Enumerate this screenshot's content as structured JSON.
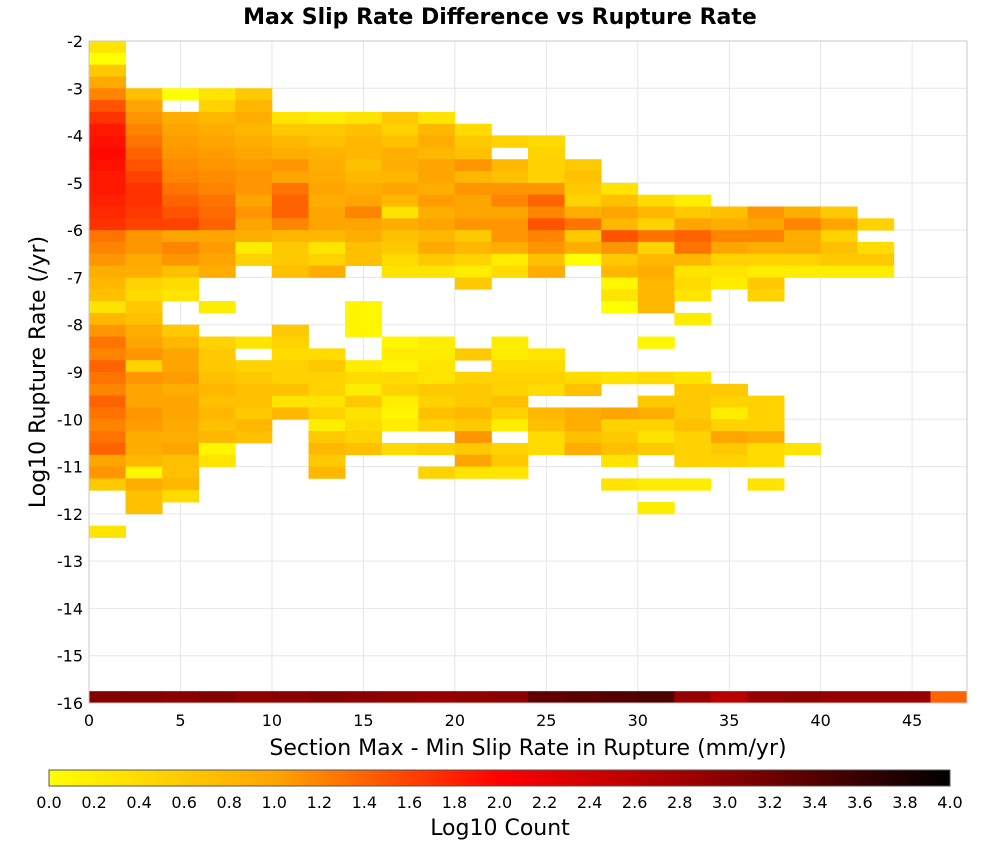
{
  "chart_data": {
    "type": "heatmap",
    "title": "Max Slip Rate Difference vs Rupture Rate",
    "xlabel": "Section Max - Min Slip Rate in Rupture (mm/yr)",
    "ylabel": "Log10 Rupture Rate (/yr)",
    "xlim": [
      0,
      48
    ],
    "ylim": [
      -16,
      -2
    ],
    "x_bin_width": 2,
    "y_bin_width": 0.25,
    "xticks": [
      "0",
      "5",
      "10",
      "15",
      "20",
      "25",
      "30",
      "35",
      "40",
      "45"
    ],
    "yticks": [
      "-2",
      "-3",
      "-4",
      "-5",
      "-6",
      "-7",
      "-8",
      "-9",
      "-10",
      "-11",
      "-12",
      "-13",
      "-14",
      "-15",
      "-16"
    ],
    "grid": true,
    "colorbar": {
      "label": "Log10 Count",
      "range": [
        0,
        4
      ],
      "ticks": [
        "0.0",
        "0.2",
        "0.4",
        "0.6",
        "0.8",
        "1.0",
        "1.2",
        "1.4",
        "1.6",
        "1.8",
        "2.0",
        "2.2",
        "2.4",
        "2.6",
        "2.8",
        "3.0",
        "3.2",
        "3.4",
        "3.6",
        "3.8",
        "4.0"
      ],
      "colors": [
        "#ffff00",
        "#ffa500",
        "#ff0000",
        "#8b0000",
        "#000000"
      ]
    },
    "rows": [
      {
        "y": -2.125,
        "x0": 0,
        "values": [
          0.3
        ]
      },
      {
        "y": -2.375,
        "x0": 0,
        "values": [
          0.0
        ]
      },
      {
        "y": -2.625,
        "x0": 0,
        "values": [
          0.6
        ]
      },
      {
        "y": -2.875,
        "x0": 0,
        "values": [
          0.95
        ]
      },
      {
        "y": -3.125,
        "x0": 0,
        "values": [
          1.2,
          0.7,
          0.0,
          0.3,
          0.6
        ]
      },
      {
        "y": -3.375,
        "x0": 0,
        "values": [
          1.5,
          1.0,
          null,
          0.5,
          0.8
        ]
      },
      {
        "y": -3.625,
        "x0": 0,
        "values": [
          1.7,
          1.1,
          0.9,
          0.8,
          0.9,
          0.3,
          0.2,
          0.3,
          0.6,
          0.3
        ]
      },
      {
        "y": -3.875,
        "x0": 0,
        "values": [
          1.85,
          1.2,
          1.0,
          0.9,
          0.8,
          0.6,
          0.6,
          0.7,
          0.5,
          0.8,
          0.4,
          null,
          null,
          null,
          null
        ]
      },
      {
        "y": -4.125,
        "x0": 0,
        "values": [
          1.9,
          1.3,
          1.05,
          1.0,
          0.9,
          0.8,
          0.7,
          0.8,
          0.7,
          0.9,
          0.6,
          0.5,
          0.4,
          null,
          null
        ]
      },
      {
        "y": -4.375,
        "x0": 0,
        "values": [
          1.95,
          1.4,
          1.1,
          1.05,
          1.0,
          0.9,
          0.85,
          0.8,
          0.9,
          0.8,
          0.7,
          null,
          0.5,
          null,
          null
        ]
      },
      {
        "y": -4.625,
        "x0": 0,
        "values": [
          1.9,
          1.5,
          1.15,
          1.1,
          1.05,
          1.1,
          0.9,
          0.7,
          0.9,
          1.0,
          1.1,
          0.8,
          0.5,
          0.6,
          null
        ]
      },
      {
        "y": -4.875,
        "x0": 0,
        "values": [
          1.85,
          1.6,
          1.2,
          1.15,
          1.1,
          1.0,
          0.95,
          0.8,
          0.8,
          1.0,
          0.8,
          0.7,
          0.5,
          0.7,
          null
        ]
      },
      {
        "y": -5.125,
        "x0": 0,
        "values": [
          1.85,
          1.7,
          1.3,
          1.2,
          1.1,
          1.3,
          1.0,
          0.9,
          1.0,
          0.9,
          1.1,
          1.1,
          1.1,
          0.6,
          0.3
        ]
      },
      {
        "y": -5.375,
        "x0": 0,
        "values": [
          1.8,
          1.7,
          1.4,
          1.3,
          1.0,
          1.4,
          0.9,
          1.0,
          0.8,
          1.05,
          1.0,
          1.2,
          1.4,
          0.5,
          0.7,
          0.4,
          0.2
        ]
      },
      {
        "y": -5.625,
        "x0": 0,
        "values": [
          1.75,
          1.65,
          1.5,
          1.35,
          1.1,
          1.4,
          1.0,
          1.2,
          0.3,
          0.9,
          1.0,
          1.0,
          1.2,
          0.9,
          1.0,
          0.8,
          0.6,
          0.7,
          1.1,
          0.9,
          0.6
        ]
      },
      {
        "y": -5.875,
        "x0": 0,
        "values": [
          1.7,
          1.6,
          1.6,
          1.4,
          1.0,
          1.2,
          1.0,
          1.0,
          0.9,
          1.0,
          1.1,
          1.1,
          1.5,
          1.3,
          0.8,
          0.5,
          1.0,
          0.9,
          1.0,
          1.2,
          1.0,
          0.5
        ]
      },
      {
        "y": -6.125,
        "x0": 0,
        "values": [
          1.3,
          1.1,
          1.0,
          1.0,
          0.9,
          0.8,
          0.8,
          0.9,
          0.7,
          0.8,
          0.6,
          1.1,
          1.2,
          0.6,
          1.5,
          1.3,
          1.4,
          1.2,
          1.2,
          0.9,
          0.5,
          null
        ]
      },
      {
        "y": -6.375,
        "x0": 0,
        "values": [
          1.2,
          1.1,
          1.2,
          1.05,
          0.2,
          0.6,
          0.3,
          0.7,
          0.6,
          0.95,
          0.8,
          0.9,
          1.1,
          0.9,
          1.1,
          0.5,
          1.3,
          1.0,
          0.9,
          0.9,
          0.7,
          0.4
        ]
      },
      {
        "y": -6.625,
        "x0": 0,
        "values": [
          1.1,
          0.95,
          1.1,
          1.0,
          0.5,
          0.6,
          0.5,
          0.7,
          0.4,
          0.6,
          0.5,
          0.2,
          0.7,
          0.0,
          0.6,
          0.8,
          0.8,
          0.5,
          0.5,
          0.5,
          0.6,
          0.6
        ]
      },
      {
        "y": -6.875,
        "x0": 0,
        "values": [
          0.9,
          0.9,
          0.7,
          0.9,
          null,
          0.7,
          0.9,
          null,
          0.3,
          0.3,
          0.2,
          0.4,
          0.9,
          null,
          0.8,
          0.9,
          0.3,
          0.3,
          0.2,
          0.2,
          0.2,
          0.2
        ]
      },
      {
        "y": -7.125,
        "x0": 0,
        "values": [
          0.8,
          0.5,
          0.4,
          null,
          null,
          null,
          null,
          null,
          null,
          null,
          0.6,
          null,
          null,
          null,
          0.1,
          0.8,
          0.4,
          0.2,
          0.6,
          null,
          null
        ]
      },
      {
        "y": -7.375,
        "x0": 0,
        "values": [
          0.7,
          0.4,
          0.3,
          null,
          null,
          null,
          null,
          null,
          null,
          null,
          null,
          null,
          null,
          null,
          0.3,
          0.8,
          0.3,
          null,
          0.5,
          null,
          null
        ]
      },
      {
        "y": -7.625,
        "x0": 0,
        "values": [
          0.3,
          0.6,
          null,
          0.2,
          null,
          null,
          null,
          0.1,
          null,
          null,
          null,
          null,
          null,
          null,
          0.0,
          0.8
        ]
      },
      {
        "y": -7.875,
        "x0": 0,
        "values": [
          0.8,
          0.7,
          null,
          null,
          null,
          null,
          null,
          0.1,
          null,
          null,
          null,
          null,
          null,
          null,
          null,
          null,
          0.2
        ]
      },
      {
        "y": -8.125,
        "x0": 0,
        "values": [
          1.1,
          0.9,
          0.6,
          null,
          null,
          0.6,
          null,
          0.1,
          null,
          null,
          null,
          null,
          null,
          null,
          null,
          null,
          null,
          null
        ]
      },
      {
        "y": -8.375,
        "x0": 0,
        "values": [
          1.3,
          1.0,
          0.8,
          0.5,
          0.3,
          0.5,
          null,
          null,
          0.1,
          0.2,
          null,
          0.2,
          null,
          null,
          null,
          0.1
        ]
      },
      {
        "y": -8.625,
        "x0": 0,
        "values": [
          1.2,
          1.1,
          1.0,
          0.6,
          null,
          0.4,
          0.4,
          null,
          0.2,
          0.2,
          0.6,
          0.2,
          0.3,
          null,
          null,
          null
        ]
      },
      {
        "y": -8.875,
        "x0": 0,
        "values": [
          1.4,
          0.5,
          1.0,
          0.6,
          0.5,
          0.5,
          0.6,
          0.2,
          0.1,
          0.3,
          null,
          0.4,
          0.4,
          null
        ]
      },
      {
        "y": -9.125,
        "x0": 0,
        "values": [
          1.3,
          1.1,
          1.05,
          0.7,
          0.6,
          0.5,
          0.5,
          0.4,
          0.4,
          0.3,
          0.5,
          0.5,
          0.5,
          0.4,
          0.3,
          0.4,
          0.3
        ]
      },
      {
        "y": -9.375,
        "x0": 0,
        "values": [
          1.2,
          1.0,
          0.9,
          0.8,
          0.7,
          0.7,
          0.5,
          0.2,
          0.5,
          0.6,
          0.6,
          0.5,
          0.4,
          0.7,
          null,
          null,
          0.6,
          0.6,
          null
        ]
      },
      {
        "y": -9.625,
        "x0": 0,
        "values": [
          1.4,
          1.0,
          1.0,
          0.7,
          0.7,
          0.3,
          0.3,
          0.6,
          0.2,
          0.5,
          0.6,
          0.7,
          null,
          null,
          null,
          0.6,
          0.6,
          0.5,
          0.5
        ]
      },
      {
        "y": -9.875,
        "x0": 0,
        "values": [
          1.3,
          1.1,
          1.0,
          0.8,
          0.6,
          0.8,
          0.5,
          0.3,
          0.1,
          0.7,
          0.8,
          0.5,
          0.8,
          0.9,
          1.0,
          0.9,
          0.6,
          0.2,
          0.5
        ]
      },
      {
        "y": -10.125,
        "x0": 0,
        "values": [
          1.2,
          1.05,
          0.95,
          0.7,
          0.8,
          null,
          0.2,
          0.4,
          0.2,
          0.5,
          0.6,
          0.2,
          0.7,
          0.9,
          0.5,
          0.5,
          0.7,
          0.5,
          0.5
        ]
      },
      {
        "y": -10.375,
        "x0": 0,
        "values": [
          1.3,
          0.9,
          0.9,
          0.8,
          0.7,
          null,
          0.6,
          0.5,
          null,
          null,
          1.1,
          null,
          0.4,
          0.7,
          0.6,
          0.3,
          0.5,
          1.0,
          0.9
        ]
      },
      {
        "y": -10.625,
        "x0": 0,
        "values": [
          1.4,
          0.9,
          1.0,
          0.1,
          null,
          null,
          0.8,
          0.7,
          0.4,
          0.5,
          0.6,
          0.5,
          0.4,
          0.9,
          0.7,
          0.6,
          0.5,
          0.6,
          0.4,
          0.3
        ]
      },
      {
        "y": -10.875,
        "x0": 0,
        "values": [
          1.0,
          0.8,
          0.7,
          0.3,
          null,
          null,
          0.6,
          null,
          null,
          null,
          1.0,
          0.6,
          null,
          null,
          0.3,
          null,
          0.5,
          0.5,
          0.4,
          null
        ]
      },
      {
        "y": -11.125,
        "x0": 0,
        "values": [
          1.1,
          0.1,
          0.7,
          null,
          null,
          null,
          0.8,
          null,
          null,
          0.5,
          0.3,
          0.3,
          null
        ]
      },
      {
        "y": -11.375,
        "x0": 0,
        "values": [
          0.6,
          0.9,
          0.8,
          null,
          null,
          null,
          null,
          null,
          null,
          null,
          null,
          null,
          null,
          null,
          0.3,
          0.2,
          0.2,
          null,
          0.3
        ]
      },
      {
        "y": -11.625,
        "x0": 0,
        "values": [
          null,
          0.7,
          0.4
        ]
      },
      {
        "y": -11.875,
        "x0": 0,
        "values": [
          null,
          0.7,
          null,
          null,
          null,
          null,
          null,
          null,
          null,
          null,
          null,
          null,
          null,
          null,
          null,
          0.2
        ]
      },
      {
        "y": -12.375,
        "x0": 0,
        "values": [
          0.3
        ]
      },
      {
        "y": -15.875,
        "x0": 0,
        "values": [
          3.05,
          3.05,
          3.0,
          3.05,
          2.95,
          3.0,
          3.05,
          3.0,
          2.95,
          2.9,
          2.95,
          3.0,
          3.3,
          3.35,
          3.4,
          3.45,
          2.9,
          2.6,
          2.9,
          2.95,
          2.9,
          2.9,
          2.9,
          1.4
        ]
      }
    ]
  }
}
